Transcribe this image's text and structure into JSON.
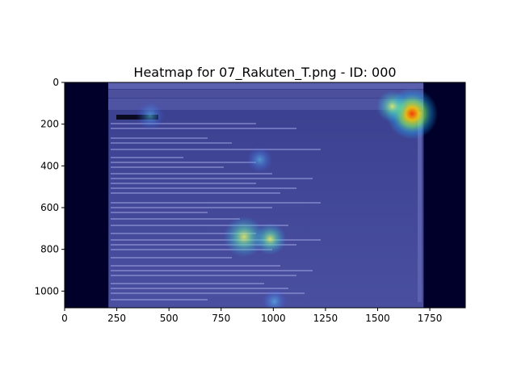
{
  "chart_data": {
    "type": "heatmap",
    "title": "Heatmap for 07_Rakuten_T.png - ID: 000",
    "xlabel": "",
    "ylabel": "",
    "xlim": [
      0,
      1920
    ],
    "ylim": [
      1080,
      0
    ],
    "x_ticks": [
      0,
      250,
      500,
      750,
      1000,
      1250,
      1500,
      1750
    ],
    "y_ticks": [
      0,
      200,
      400,
      600,
      800,
      1000
    ],
    "x_tick_labels": [
      "0",
      "250",
      "500",
      "750",
      "1000",
      "1250",
      "1500",
      "1750"
    ],
    "y_tick_labels": [
      "0",
      "200",
      "400",
      "600",
      "800",
      "1000"
    ],
    "grid": false,
    "background_color": "#00002a",
    "screenshot_extent_x": [
      210,
      1720
    ],
    "screenshot_extent_y": [
      0,
      1080
    ],
    "hotspots": [
      {
        "x": 1665,
        "y": 150,
        "intensity": 1.0
      },
      {
        "x": 1570,
        "y": 115,
        "intensity": 0.45
      },
      {
        "x": 860,
        "y": 740,
        "intensity": 0.7
      },
      {
        "x": 985,
        "y": 750,
        "intensity": 0.45
      },
      {
        "x": 935,
        "y": 370,
        "intensity": 0.3
      },
      {
        "x": 410,
        "y": 160,
        "intensity": 0.35
      },
      {
        "x": 1005,
        "y": 1050,
        "intensity": 0.25
      }
    ]
  }
}
